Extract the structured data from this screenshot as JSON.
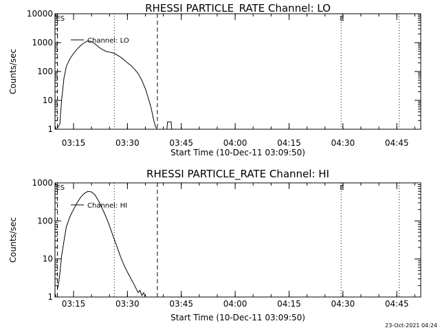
{
  "chart_data": [
    {
      "type": "line",
      "title": "RHESSI PARTICLE_RATE Channel: LO",
      "xlabel": "Start Time (10-Dec-11 03:09:50)",
      "ylabel": "Counts/sec",
      "yscale": "log",
      "ylim": [
        1,
        10000
      ],
      "yticks": [
        "1",
        "10",
        "100",
        "1000",
        "10000"
      ],
      "xlim": [
        "03:09:50",
        "04:51:40"
      ],
      "xticks": [
        "03:15",
        "03:30",
        "03:45",
        "04:00",
        "04:15",
        "04:30",
        "04:45"
      ],
      "legend": "Channel: LO",
      "legend_position": "top-left",
      "markers": [
        {
          "time": "03:10:30",
          "style": "dashed",
          "label": "ES"
        },
        {
          "time": "03:26:20",
          "style": "dotted",
          "label": ""
        },
        {
          "time": "03:38:20",
          "style": "dashed",
          "label": ""
        },
        {
          "time": "04:29:30",
          "style": "dotted",
          "label": "E"
        },
        {
          "time": "04:45:40",
          "style": "dotted",
          "label": ""
        }
      ],
      "series": [
        {
          "name": "Channel: LO",
          "x": [
            "03:10:20",
            "03:11:10",
            "03:11:40",
            "03:12:20",
            "03:13:00",
            "03:14:00",
            "03:15:00",
            "03:16:00",
            "03:17:00",
            "03:18:00",
            "03:19:00",
            "03:20:00",
            "03:21:00",
            "03:22:00",
            "03:23:00",
            "03:24:00",
            "03:25:00",
            "03:26:00",
            "03:27:00",
            "03:28:00",
            "03:29:00",
            "03:30:00",
            "03:31:00",
            "03:32:00",
            "03:33:00",
            "03:34:00",
            "03:35:00",
            "03:36:00",
            "03:36:40",
            "03:37:20",
            "03:37:50",
            "03:38:20",
            "03:41:00",
            "03:41:10",
            "03:42:10",
            "03:42:20"
          ],
          "y": [
            1,
            1.5,
            10,
            60,
            150,
            280,
            420,
            600,
            800,
            1000,
            1150,
            1100,
            900,
            700,
            580,
            500,
            470,
            440,
            380,
            320,
            260,
            200,
            160,
            120,
            85,
            50,
            25,
            10,
            5,
            2,
            1.2,
            1,
            1,
            1.8,
            1.8,
            1
          ]
        }
      ]
    },
    {
      "type": "line",
      "title": "RHESSI PARTICLE_RATE Channel: HI",
      "xlabel": "Start Time (10-Dec-11 03:09:50)",
      "ylabel": "Counts/sec",
      "yscale": "log",
      "ylim": [
        1,
        1000
      ],
      "yticks": [
        "1",
        "10",
        "100",
        "1000"
      ],
      "xlim": [
        "03:09:50",
        "04:51:40"
      ],
      "xticks": [
        "03:15",
        "03:30",
        "03:45",
        "04:00",
        "04:15",
        "04:30",
        "04:45"
      ],
      "legend": "Channel: HI",
      "legend_position": "top-left",
      "markers": [
        {
          "time": "03:10:30",
          "style": "dashed",
          "label": "ES"
        },
        {
          "time": "03:26:20",
          "style": "dotted",
          "label": ""
        },
        {
          "time": "03:38:20",
          "style": "dashed",
          "label": ""
        },
        {
          "time": "04:29:30",
          "style": "dotted",
          "label": "E"
        },
        {
          "time": "04:45:40",
          "style": "dotted",
          "label": ""
        }
      ],
      "series": [
        {
          "name": "Channel: HI",
          "x": [
            "03:10:40",
            "03:11:10",
            "03:11:40",
            "03:12:20",
            "03:13:00",
            "03:14:00",
            "03:15:00",
            "03:16:00",
            "03:17:00",
            "03:18:00",
            "03:19:00",
            "03:20:00",
            "03:21:00",
            "03:22:00",
            "03:23:00",
            "03:24:00",
            "03:25:00",
            "03:26:00",
            "03:27:00",
            "03:28:00",
            "03:29:00",
            "03:30:00",
            "03:31:00",
            "03:32:00",
            "03:32:30",
            "03:33:00",
            "03:33:30",
            "03:34:00",
            "03:34:30",
            "03:35:00"
          ],
          "y": [
            1.8,
            4,
            12,
            30,
            70,
            130,
            200,
            300,
            420,
            530,
            600,
            580,
            480,
            330,
            210,
            130,
            75,
            40,
            22,
            12,
            7,
            4.5,
            3,
            2,
            1.6,
            1.3,
            1.5,
            1.1,
            1.3,
            1
          ]
        }
      ]
    }
  ],
  "timestamp": "23-Oct-2021 04:24"
}
